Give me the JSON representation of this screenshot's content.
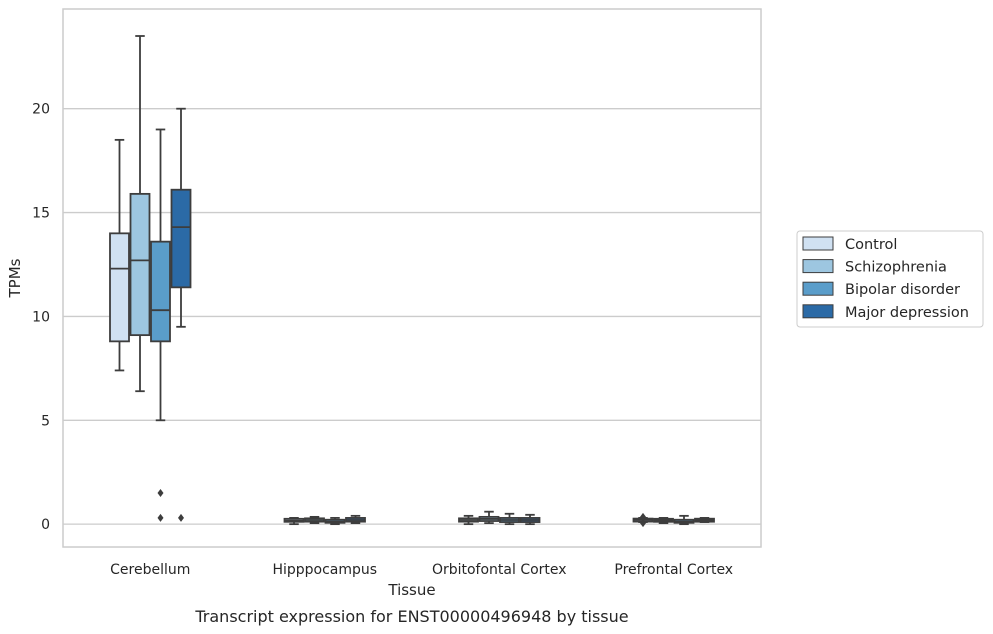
{
  "caption": "Transcript expression for ENST00000496948 by tissue",
  "chart_data": {
    "type": "box",
    "xlabel": "Tissue",
    "ylabel": "TPMs",
    "ylim": [
      -1.1,
      24.8
    ],
    "yticks": [
      0,
      5,
      10,
      15,
      20
    ],
    "grid": "horizontal",
    "legend_placement": "right",
    "categories": [
      "Cerebellum",
      "Hipppocampus",
      "Orbitofontal Cortex",
      "Prefrontal Cortex"
    ],
    "series": [
      {
        "name": "Control",
        "color": "#d0e1f2",
        "boxes": [
          {
            "whislo": 7.4,
            "q1": 8.8,
            "med": 12.3,
            "q3": 14.0,
            "whishi": 18.5,
            "fliers": []
          },
          {
            "whislo": 0.0,
            "q1": 0.12,
            "med": 0.17,
            "q3": 0.25,
            "whishi": 0.3,
            "fliers": []
          },
          {
            "whislo": 0.0,
            "q1": 0.12,
            "med": 0.2,
            "q3": 0.28,
            "whishi": 0.4,
            "fliers": []
          },
          {
            "whislo": 0.1,
            "q1": 0.14,
            "med": 0.2,
            "q3": 0.25,
            "whishi": 0.3,
            "fliers": [
              0.05,
              0.35
            ]
          }
        ]
      },
      {
        "name": "Schizophrenia",
        "color": "#9dc6e0",
        "boxes": [
          {
            "whislo": 6.4,
            "q1": 9.1,
            "med": 12.7,
            "q3": 15.9,
            "whishi": 23.5,
            "fliers": []
          },
          {
            "whislo": 0.05,
            "q1": 0.12,
            "med": 0.2,
            "q3": 0.28,
            "whishi": 0.35,
            "fliers": []
          },
          {
            "whislo": 0.05,
            "q1": 0.15,
            "med": 0.25,
            "q3": 0.35,
            "whishi": 0.6,
            "fliers": []
          },
          {
            "whislo": 0.05,
            "q1": 0.12,
            "med": 0.18,
            "q3": 0.25,
            "whishi": 0.3,
            "fliers": []
          }
        ]
      },
      {
        "name": "Bipolar disorder",
        "color": "#5a9dca",
        "boxes": [
          {
            "whislo": 5.0,
            "q1": 8.8,
            "med": 10.3,
            "q3": 13.6,
            "whishi": 19.0,
            "fliers": [
              0.3,
              1.5
            ]
          },
          {
            "whislo": 0.0,
            "q1": 0.08,
            "med": 0.12,
            "q3": 0.2,
            "whishi": 0.3,
            "fliers": []
          },
          {
            "whislo": 0.0,
            "q1": 0.1,
            "med": 0.2,
            "q3": 0.3,
            "whishi": 0.5,
            "fliers": []
          },
          {
            "whislo": 0.0,
            "q1": 0.08,
            "med": 0.12,
            "q3": 0.2,
            "whishi": 0.4,
            "fliers": []
          }
        ]
      },
      {
        "name": "Major depression",
        "color": "#2b6aa6",
        "boxes": [
          {
            "whislo": 9.5,
            "q1": 11.4,
            "med": 14.3,
            "q3": 16.1,
            "whishi": 20.0,
            "fliers": [
              0.3
            ]
          },
          {
            "whislo": 0.05,
            "q1": 0.12,
            "med": 0.2,
            "q3": 0.3,
            "whishi": 0.4,
            "fliers": []
          },
          {
            "whislo": 0.0,
            "q1": 0.1,
            "med": 0.2,
            "q3": 0.3,
            "whishi": 0.45,
            "fliers": []
          },
          {
            "whislo": 0.1,
            "q1": 0.14,
            "med": 0.18,
            "q3": 0.24,
            "whishi": 0.3,
            "fliers": []
          }
        ]
      }
    ]
  }
}
